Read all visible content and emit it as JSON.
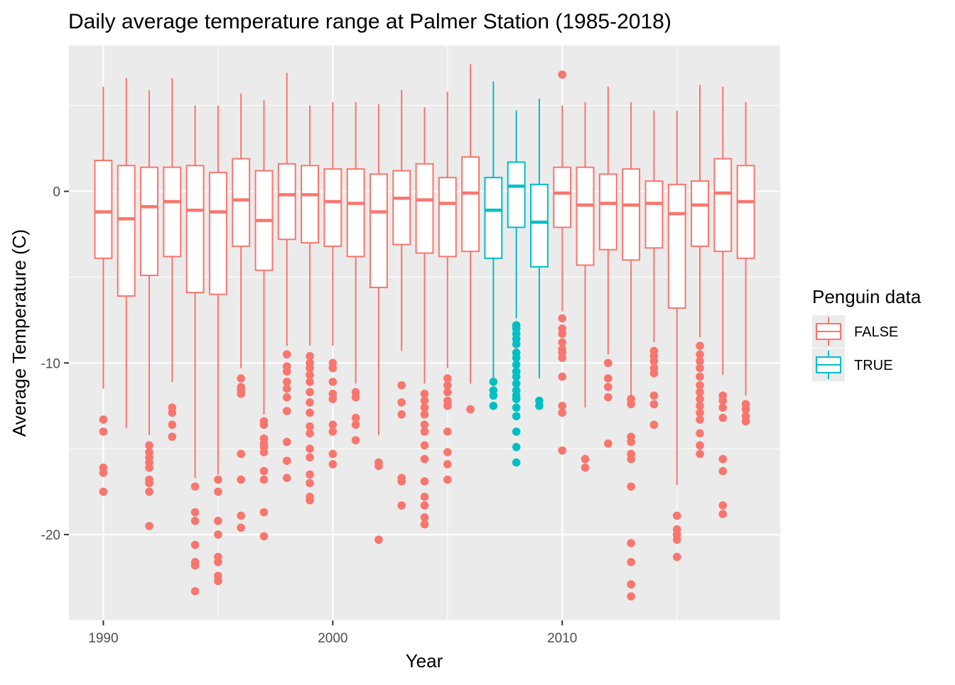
{
  "chart_data": {
    "type": "boxplot",
    "title": "Daily average temperature range at Palmer Station (1985-2018)",
    "xlabel": "Year",
    "ylabel": "Average Temperature (C)",
    "xlim": [
      1988.5,
      2019.5
    ],
    "ylim": [
      -25,
      8.5
    ],
    "x_ticks": [
      1990,
      2000,
      2010
    ],
    "y_ticks": [
      0,
      -10,
      -20
    ],
    "grid": true,
    "legend": {
      "title": "Penguin data",
      "position": "right",
      "entries": [
        {
          "label": "FALSE",
          "color": "#F8766D"
        },
        {
          "label": "TRUE",
          "color": "#00BFC4"
        }
      ]
    },
    "colors": {
      "FALSE": "#F8766D",
      "TRUE": "#00BFC4",
      "panel": "#EBEBEB",
      "grid": "#FFFFFF"
    },
    "series": [
      {
        "name": "FALSE",
        "boxes": [
          {
            "x": 1990,
            "lower": -11.5,
            "q1": -3.9,
            "median": -1.2,
            "q3": 1.8,
            "upper": 6.1,
            "outliers": [
              -13.3,
              -14.0,
              -16.1,
              -16.4,
              -17.5
            ]
          },
          {
            "x": 1991,
            "lower": -13.8,
            "q1": -6.1,
            "median": -1.6,
            "q3": 1.5,
            "upper": 6.6,
            "outliers": []
          },
          {
            "x": 1992,
            "lower": -14.2,
            "q1": -4.9,
            "median": -0.9,
            "q3": 1.4,
            "upper": 5.9,
            "outliers": [
              -14.8,
              -15.2,
              -15.5,
              -15.8,
              -16.1,
              -16.8,
              -17.0,
              -17.5,
              -19.5
            ]
          },
          {
            "x": 1993,
            "lower": -11.1,
            "q1": -3.8,
            "median": -0.6,
            "q3": 1.4,
            "upper": 6.6,
            "outliers": [
              -12.6,
              -12.9,
              -13.6,
              -14.3
            ]
          },
          {
            "x": 1994,
            "lower": -16.7,
            "q1": -5.9,
            "median": -1.1,
            "q3": 1.5,
            "upper": 5.0,
            "outliers": [
              -17.2,
              -18.7,
              -19.2,
              -20.6,
              -21.6,
              -21.8,
              -23.3
            ]
          },
          {
            "x": 1995,
            "lower": -16.5,
            "q1": -6.0,
            "median": -1.2,
            "q3": 1.1,
            "upper": 5.0,
            "outliers": [
              -16.8,
              -17.5,
              -19.2,
              -20.0,
              -21.3,
              -21.6,
              -22.4,
              -22.7
            ]
          },
          {
            "x": 1996,
            "lower": -10.3,
            "q1": -3.2,
            "median": -0.5,
            "q3": 1.9,
            "upper": 5.7,
            "outliers": [
              -10.9,
              -11.4,
              -11.6,
              -11.8,
              -15.3,
              -16.8,
              -18.9,
              -19.6
            ]
          },
          {
            "x": 1997,
            "lower": -13.0,
            "q1": -4.6,
            "median": -1.7,
            "q3": 1.2,
            "upper": 5.3,
            "outliers": [
              -13.4,
              -13.6,
              -14.4,
              -14.7,
              -14.9,
              -15.2,
              -16.3,
              -16.8,
              -18.7,
              -20.1
            ]
          },
          {
            "x": 1998,
            "lower": -9.0,
            "q1": -2.8,
            "median": -0.2,
            "q3": 1.6,
            "upper": 6.9,
            "outliers": [
              -9.5,
              -10.2,
              -10.5,
              -11.1,
              -11.5,
              -12.0,
              -12.8,
              -14.6,
              -15.7,
              -16.7
            ]
          },
          {
            "x": 1999,
            "lower": -9.0,
            "q1": -3.0,
            "median": -0.2,
            "q3": 1.5,
            "upper": 5.0,
            "outliers": [
              -9.6,
              -10.0,
              -10.3,
              -10.7,
              -11.1,
              -11.7,
              -12.3,
              -12.9,
              -13.7,
              -14.1,
              -15.0,
              -15.5,
              -16.5,
              -17.0,
              -17.8,
              -18.0
            ]
          },
          {
            "x": 2000,
            "lower": -9.0,
            "q1": -3.2,
            "median": -0.6,
            "q3": 1.3,
            "upper": 5.2,
            "outliers": [
              -10.0,
              -10.3,
              -11.1,
              -11.8,
              -12.1,
              -13.6,
              -14.0,
              -15.3,
              -15.9
            ]
          },
          {
            "x": 2001,
            "lower": -11.2,
            "q1": -3.8,
            "median": -0.7,
            "q3": 1.3,
            "upper": 5.2,
            "outliers": [
              -11.7,
              -12.0,
              -13.2,
              -13.6,
              -14.5
            ]
          },
          {
            "x": 2002,
            "lower": -14.2,
            "q1": -5.6,
            "median": -1.2,
            "q3": 1.0,
            "upper": 5.1,
            "outliers": [
              -15.8,
              -16.0,
              -20.3
            ]
          },
          {
            "x": 2003,
            "lower": -9.3,
            "q1": -3.1,
            "median": -0.4,
            "q3": 1.2,
            "upper": 5.9,
            "outliers": [
              -11.3,
              -12.3,
              -13.0,
              -16.7,
              -16.9,
              -18.3
            ]
          },
          {
            "x": 2004,
            "lower": -11.2,
            "q1": -3.6,
            "median": -0.5,
            "q3": 1.6,
            "upper": 4.9,
            "outliers": [
              -11.8,
              -12.2,
              -12.6,
              -13.0,
              -13.6,
              -14.0,
              -14.8,
              -15.6,
              -16.9,
              -17.8,
              -18.3,
              -19.0,
              -19.4
            ]
          },
          {
            "x": 2005,
            "lower": -10.3,
            "q1": -3.8,
            "median": -0.7,
            "q3": 0.8,
            "upper": 5.8,
            "outliers": [
              -10.9,
              -11.3,
              -11.7,
              -12.2,
              -12.5,
              -14.0,
              -15.2,
              -15.9,
              -16.8
            ]
          },
          {
            "x": 2006,
            "lower": -11.2,
            "q1": -3.5,
            "median": -0.1,
            "q3": 2.0,
            "upper": 7.4,
            "outliers": [
              -12.7
            ]
          },
          {
            "x": 2010,
            "lower": -7.0,
            "q1": -2.1,
            "median": -0.1,
            "q3": 1.4,
            "upper": 5.0,
            "outliers": [
              -7.4,
              -8.0,
              -8.3,
              -8.8,
              -9.2,
              -9.4,
              -9.7,
              -10.8,
              -12.5,
              -12.9,
              -15.1,
              6.8
            ]
          },
          {
            "x": 2011,
            "lower": -12.6,
            "q1": -4.3,
            "median": -0.8,
            "q3": 1.4,
            "upper": 5.2,
            "outliers": [
              -15.6,
              -16.1
            ]
          },
          {
            "x": 2012,
            "lower": -9.5,
            "q1": -3.4,
            "median": -0.7,
            "q3": 1.0,
            "upper": 6.1,
            "outliers": [
              -10.0,
              -10.9,
              -11.4,
              -12.0,
              -14.7
            ]
          },
          {
            "x": 2013,
            "lower": -11.9,
            "q1": -4.0,
            "median": -0.8,
            "q3": 1.3,
            "upper": 5.2,
            "outliers": [
              -12.1,
              -12.4,
              -14.3,
              -14.6,
              -15.3,
              -15.6,
              -17.2,
              -20.5,
              -21.6,
              -22.9,
              -23.6
            ]
          },
          {
            "x": 2014,
            "lower": -8.8,
            "q1": -3.3,
            "median": -0.7,
            "q3": 0.6,
            "upper": 4.7,
            "outliers": [
              -9.3,
              -9.6,
              -9.9,
              -10.3,
              -10.6,
              -11.9,
              -12.4,
              -13.6
            ]
          },
          {
            "x": 2015,
            "lower": -17.1,
            "q1": -6.8,
            "median": -1.3,
            "q3": 0.4,
            "upper": 4.7,
            "outliers": [
              -18.9,
              -19.7,
              -20.0,
              -20.3,
              -21.3
            ]
          },
          {
            "x": 2016,
            "lower": -8.5,
            "q1": -3.2,
            "median": -0.8,
            "q3": 0.6,
            "upper": 6.2,
            "outliers": [
              -9.0,
              -9.5,
              -9.9,
              -10.3,
              -10.8,
              -11.3,
              -11.7,
              -12.1,
              -12.5,
              -12.9,
              -13.3,
              -14.1,
              -14.8,
              -15.3
            ]
          },
          {
            "x": 2017,
            "lower": -10.7,
            "q1": -3.5,
            "median": -0.1,
            "q3": 1.9,
            "upper": 6.1,
            "outliers": [
              -11.9,
              -12.2,
              -12.6,
              -13.2,
              -15.6,
              -16.3,
              -18.3,
              -18.8
            ]
          },
          {
            "x": 2018,
            "lower": -11.9,
            "q1": -3.9,
            "median": -0.6,
            "q3": 1.5,
            "upper": 5.2,
            "outliers": [
              -12.4,
              -12.7,
              -13.1,
              -13.4
            ]
          }
        ]
      },
      {
        "name": "TRUE",
        "boxes": [
          {
            "x": 2007,
            "lower": -10.9,
            "q1": -3.9,
            "median": -1.1,
            "q3": 0.8,
            "upper": 6.4,
            "outliers": [
              -11.1,
              -11.6,
              -11.9,
              -12.5
            ]
          },
          {
            "x": 2008,
            "lower": -7.4,
            "q1": -2.1,
            "median": 0.3,
            "q3": 1.7,
            "upper": 4.7,
            "outliers": [
              -7.8,
              -8.0,
              -8.3,
              -8.6,
              -8.9,
              -9.4,
              -9.7,
              -10.1,
              -10.5,
              -10.8,
              -11.2,
              -11.6,
              -11.9,
              -12.1,
              -12.6,
              -13.1,
              -14.0,
              -14.9,
              -15.8
            ]
          },
          {
            "x": 2009,
            "lower": -10.9,
            "q1": -4.4,
            "median": -1.8,
            "q3": 0.4,
            "upper": 5.4,
            "outliers": [
              -12.2,
              -12.5
            ]
          }
        ]
      }
    ]
  }
}
